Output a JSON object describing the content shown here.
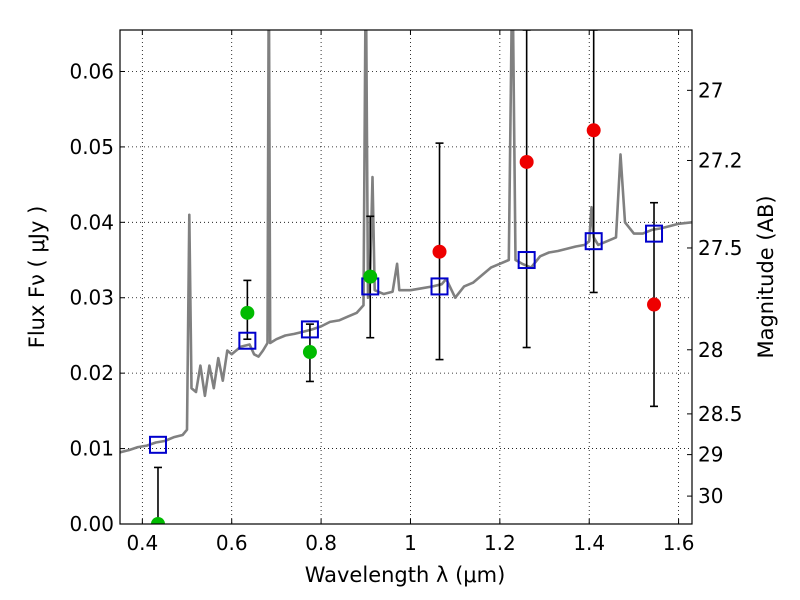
{
  "chart_data": {
    "type": "scatter",
    "title": "",
    "xlabel": "Wavelength  λ (μm)",
    "ylabel": "Flux  Fν  ( μJy )",
    "y2label": "Magnitude (AB)",
    "xlim": [
      0.35,
      1.63
    ],
    "ylim": [
      0.0,
      0.0655
    ],
    "grid": true,
    "x_ticks": [
      0.4,
      0.6,
      0.8,
      1.0,
      1.2,
      1.4,
      1.6
    ],
    "x_tick_labels": [
      "0.4",
      "0.6",
      "0.8",
      "1",
      "1.2",
      "1.4",
      "1.6"
    ],
    "y_ticks": [
      0.0,
      0.01,
      0.02,
      0.03,
      0.04,
      0.05,
      0.06
    ],
    "y_tick_labels": [
      "0.00",
      "0.01",
      "0.02",
      "0.03",
      "0.04",
      "0.05",
      "0.06"
    ],
    "y2_ticks": [
      {
        "label": "27",
        "flux": 0.0575
      },
      {
        "label": "27.2",
        "flux": 0.0482
      },
      {
        "label": "27.5",
        "flux": 0.0366
      },
      {
        "label": "28",
        "flux": 0.0231
      },
      {
        "label": "28.5",
        "flux": 0.0146
      },
      {
        "label": "29",
        "flux": 0.0092
      },
      {
        "label": "30",
        "flux": 0.0037
      }
    ],
    "model_spectrum": {
      "color": "#808080",
      "points": [
        [
          0.35,
          0.0095
        ],
        [
          0.37,
          0.0098
        ],
        [
          0.39,
          0.0102
        ],
        [
          0.41,
          0.0104
        ],
        [
          0.43,
          0.0108
        ],
        [
          0.45,
          0.011
        ],
        [
          0.47,
          0.0115
        ],
        [
          0.49,
          0.0118
        ],
        [
          0.5,
          0.0125
        ],
        [
          0.505,
          0.041
        ],
        [
          0.51,
          0.018
        ],
        [
          0.52,
          0.0175
        ],
        [
          0.53,
          0.021
        ],
        [
          0.54,
          0.017
        ],
        [
          0.55,
          0.021
        ],
        [
          0.56,
          0.018
        ],
        [
          0.57,
          0.022
        ],
        [
          0.58,
          0.019
        ],
        [
          0.59,
          0.023
        ],
        [
          0.6,
          0.0225
        ],
        [
          0.62,
          0.0235
        ],
        [
          0.64,
          0.0238
        ],
        [
          0.65,
          0.0225
        ],
        [
          0.66,
          0.0222
        ],
        [
          0.67,
          0.023
        ],
        [
          0.68,
          0.024
        ],
        [
          0.683,
          0.075
        ],
        [
          0.686,
          0.024
        ],
        [
          0.7,
          0.0245
        ],
        [
          0.72,
          0.025
        ],
        [
          0.74,
          0.0252
        ],
        [
          0.76,
          0.0255
        ],
        [
          0.78,
          0.0258
        ],
        [
          0.8,
          0.0262
        ],
        [
          0.82,
          0.0268
        ],
        [
          0.84,
          0.027
        ],
        [
          0.86,
          0.0275
        ],
        [
          0.88,
          0.028
        ],
        [
          0.895,
          0.029
        ],
        [
          0.9,
          0.075
        ],
        [
          0.905,
          0.03
        ],
        [
          0.91,
          0.034
        ],
        [
          0.915,
          0.046
        ],
        [
          0.92,
          0.031
        ],
        [
          0.94,
          0.0305
        ],
        [
          0.96,
          0.0308
        ],
        [
          0.97,
          0.0345
        ],
        [
          0.975,
          0.031
        ],
        [
          1.0,
          0.031
        ],
        [
          1.02,
          0.0312
        ],
        [
          1.05,
          0.0315
        ],
        [
          1.07,
          0.0318
        ],
        [
          1.08,
          0.0325
        ],
        [
          1.1,
          0.03
        ],
        [
          1.12,
          0.0315
        ],
        [
          1.14,
          0.032
        ],
        [
          1.16,
          0.033
        ],
        [
          1.18,
          0.034
        ],
        [
          1.2,
          0.0345
        ],
        [
          1.22,
          0.035
        ],
        [
          1.228,
          0.075
        ],
        [
          1.235,
          0.035
        ],
        [
          1.25,
          0.0345
        ],
        [
          1.27,
          0.034
        ],
        [
          1.29,
          0.0355
        ],
        [
          1.31,
          0.036
        ],
        [
          1.33,
          0.0362
        ],
        [
          1.35,
          0.0365
        ],
        [
          1.37,
          0.0368
        ],
        [
          1.39,
          0.037
        ],
        [
          1.4,
          0.0375
        ],
        [
          1.405,
          0.042
        ],
        [
          1.41,
          0.038
        ],
        [
          1.42,
          0.037
        ],
        [
          1.44,
          0.0375
        ],
        [
          1.46,
          0.038
        ],
        [
          1.47,
          0.049
        ],
        [
          1.48,
          0.04
        ],
        [
          1.5,
          0.0385
        ],
        [
          1.52,
          0.0385
        ],
        [
          1.54,
          0.039
        ],
        [
          1.56,
          0.0392
        ],
        [
          1.58,
          0.0395
        ],
        [
          1.6,
          0.0398
        ],
        [
          1.63,
          0.04
        ]
      ]
    },
    "series": [
      {
        "name": "",
        "marker": "square-open",
        "color": "#0000cc",
        "x": [
          0.435,
          0.635,
          0.775,
          0.91,
          1.065,
          1.26,
          1.41,
          1.545
        ],
        "y": [
          0.0105,
          0.0243,
          0.0258,
          0.0315,
          0.0315,
          0.035,
          0.0375,
          0.0385
        ]
      },
      {
        "name": "",
        "marker": "circle",
        "color": "#00bb00",
        "x": [
          0.435,
          0.635,
          0.775,
          0.91
        ],
        "y": [
          0.0,
          0.028,
          0.0228,
          0.0328
        ],
        "yerr_low": [
          null,
          0.0245,
          0.0189,
          0.0247
        ],
        "yerr_high": [
          0.0075,
          0.0323,
          0.0265,
          0.0408
        ]
      },
      {
        "name": "",
        "marker": "circle",
        "color": "#ee0000",
        "x": [
          1.065,
          1.26,
          1.41,
          1.545
        ],
        "y": [
          0.0361,
          0.048,
          0.0522,
          0.0291
        ],
        "yerr_low": [
          0.0218,
          0.0234,
          0.0307,
          0.0156
        ],
        "yerr_high": [
          0.0505,
          0.0655,
          0.0655,
          0.0426
        ]
      }
    ]
  }
}
